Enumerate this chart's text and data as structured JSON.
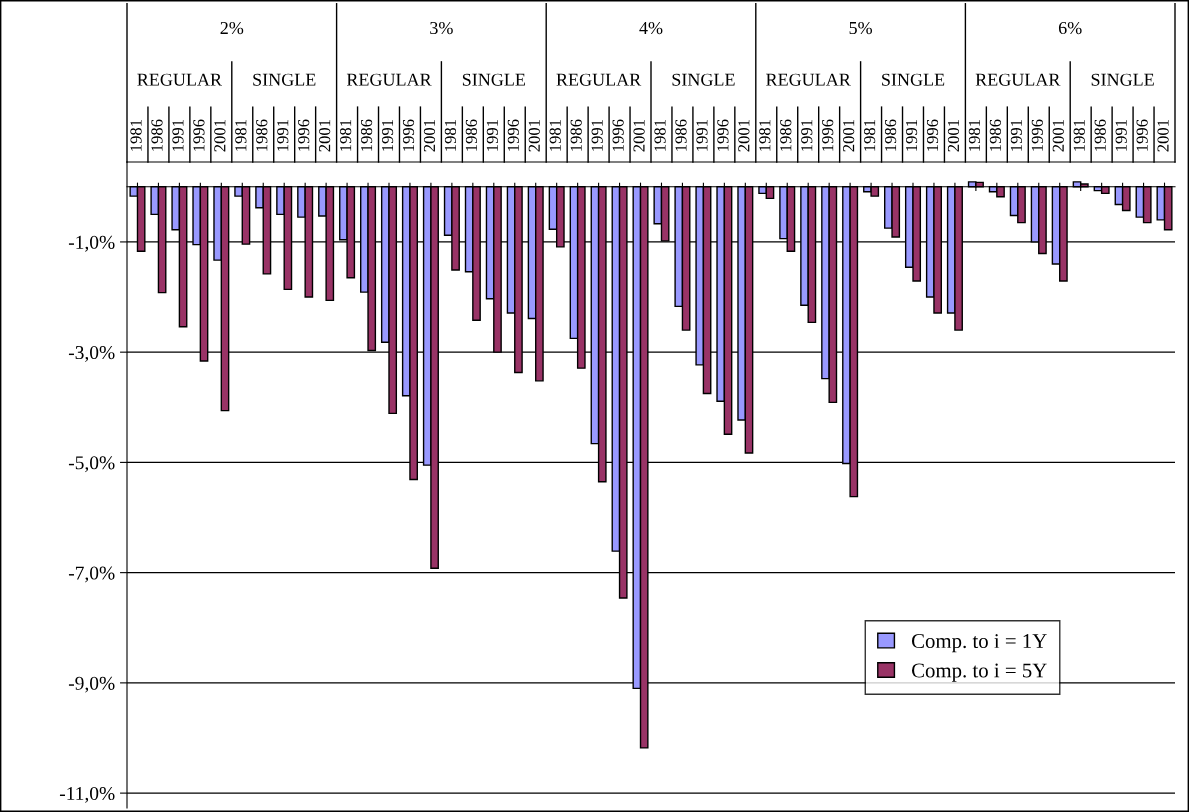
{
  "chart_data": {
    "type": "bar",
    "categories": [
      "1981",
      "1986",
      "1991",
      "1996",
      "2001",
      "1981",
      "1986",
      "1991",
      "1996",
      "2001",
      "1981",
      "1986",
      "1991",
      "1996",
      "2001",
      "1981",
      "1986",
      "1991",
      "1996",
      "2001",
      "1981",
      "1986",
      "1991",
      "1996",
      "2001",
      "1981",
      "1986",
      "1991",
      "1996",
      "2001",
      "1981",
      "1986",
      "1991",
      "1996",
      "2001",
      "1981",
      "1986",
      "1991",
      "1996",
      "2001",
      "1981",
      "1986",
      "1991",
      "1996",
      "2001",
      "1981",
      "1986",
      "1991",
      "1996",
      "2001"
    ],
    "annotations": [
      "2%",
      "REGULAR",
      "SINGLE",
      "3%",
      "REGULAR",
      "SINGLE",
      "4%",
      "REGULAR",
      "SINGLE",
      "5%",
      "REGULAR",
      "SINGLE",
      "6%",
      "REGULAR",
      "SINGLE"
    ],
    "series": [
      {
        "name": "Comp. to i = 1Y",
        "color": "#9999ff",
        "values": [
          -0.17,
          -0.5,
          -0.78,
          -1.05,
          -1.33,
          -0.17,
          -0.38,
          -0.5,
          -0.55,
          -0.53,
          -0.96,
          -1.91,
          -2.82,
          -3.79,
          -5.05,
          -0.88,
          -1.54,
          -2.03,
          -2.29,
          -2.39,
          -0.77,
          -2.75,
          -4.66,
          -6.61,
          -9.1,
          -0.67,
          -2.17,
          -3.23,
          -3.89,
          -4.23,
          -0.12,
          -0.94,
          -2.15,
          -3.48,
          -5.02,
          -0.09,
          -0.75,
          -1.46,
          -2.0,
          -2.29,
          0.09,
          -0.09,
          -0.52,
          -1.0,
          -1.4,
          0.09,
          -0.07,
          -0.32,
          -0.55,
          -0.6
        ]
      },
      {
        "name": "Comp. to i = 5Y",
        "color": "#993366",
        "values": [
          -1.17,
          -1.92,
          -2.54,
          -3.16,
          -4.06,
          -1.04,
          -1.58,
          -1.86,
          -2.0,
          -2.06,
          -1.65,
          -2.97,
          -4.11,
          -5.31,
          -6.92,
          -1.51,
          -2.42,
          -3.0,
          -3.37,
          -3.52,
          -1.09,
          -3.29,
          -5.35,
          -7.46,
          -10.18,
          -0.98,
          -2.6,
          -3.75,
          -4.49,
          -4.83,
          -0.21,
          -1.17,
          -2.46,
          -3.91,
          -5.62,
          -0.17,
          -0.91,
          -1.71,
          -2.29,
          -2.6,
          0.08,
          -0.18,
          -0.65,
          -1.21,
          -1.71,
          0.05,
          -0.12,
          -0.43,
          -0.65,
          -0.78
        ]
      }
    ],
    "ylim": [
      -11.27,
      0.45
    ],
    "yticks": [
      {
        "value": -1,
        "label": "-1,0%"
      },
      {
        "value": -3,
        "label": "-3,0%"
      },
      {
        "value": -5,
        "label": "-5,0%"
      },
      {
        "value": -7,
        "label": "-7,0%"
      },
      {
        "value": -9,
        "label": "-9,0%"
      },
      {
        "value": -11,
        "label": "-11,0%"
      }
    ],
    "grid": "y",
    "legend": "bottom right"
  }
}
